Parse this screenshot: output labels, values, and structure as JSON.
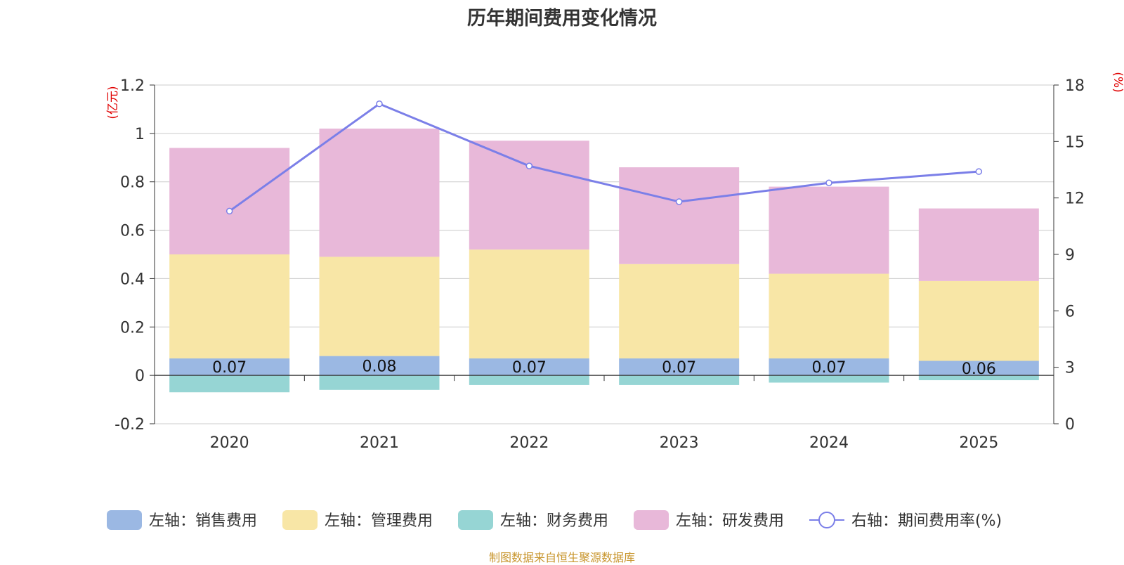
{
  "chart_data": {
    "type": "bar",
    "title": "历年期间费用变化情况",
    "source": "制图数据来自恒生聚源数据库",
    "left_axis_unit": "(亿元)",
    "right_axis_unit": "(%)",
    "categories": [
      "2020",
      "2021",
      "2022",
      "2023",
      "2024",
      "2025"
    ],
    "left_ylim": [
      -0.2,
      1.2
    ],
    "left_ticks": [
      "-0.2",
      "0",
      "0.2",
      "0.4",
      "0.6",
      "0.8",
      "1",
      "1.2"
    ],
    "right_ylim": [
      0,
      18
    ],
    "right_ticks": [
      "0",
      "3",
      "6",
      "9",
      "12",
      "15",
      "18"
    ],
    "series": [
      {
        "name": "左轴：销售费用",
        "type": "bar",
        "color": "#9bb8e3",
        "values": [
          0.07,
          0.08,
          0.07,
          0.07,
          0.07,
          0.06
        ],
        "labels": [
          "0.07",
          "0.08",
          "0.07",
          "0.07",
          "0.07",
          "0.06"
        ]
      },
      {
        "name": "左轴：管理费用",
        "type": "bar",
        "color": "#f8e6a6",
        "values": [
          0.43,
          0.41,
          0.45,
          0.39,
          0.35,
          0.33
        ]
      },
      {
        "name": "左轴：财务费用",
        "type": "bar",
        "color": "#96d5d4",
        "values": [
          -0.07,
          -0.06,
          -0.04,
          -0.04,
          -0.03,
          -0.02
        ]
      },
      {
        "name": "左轴：研发费用",
        "type": "bar",
        "color": "#e8b8d9",
        "values": [
          0.44,
          0.53,
          0.45,
          0.4,
          0.36,
          0.3
        ]
      },
      {
        "name": "右轴：期间费用率(%)",
        "type": "line",
        "color": "#7b7fe8",
        "values": [
          11.3,
          17.0,
          13.7,
          11.8,
          12.8,
          13.4
        ]
      }
    ]
  }
}
